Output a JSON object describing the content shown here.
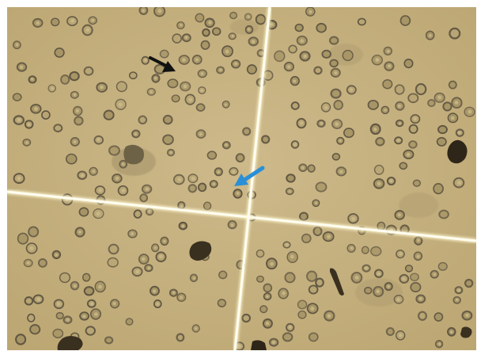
{
  "image": {
    "subject": "micrograph",
    "background_color": "#c4b07e",
    "cell_color": "#5e5440",
    "grid_line_color": "#fffbe6"
  },
  "annotations": [
    {
      "icon": "arrow-icon",
      "color": "#111111"
    },
    {
      "icon": "arrow-icon",
      "color": "#2a8fd6"
    }
  ]
}
